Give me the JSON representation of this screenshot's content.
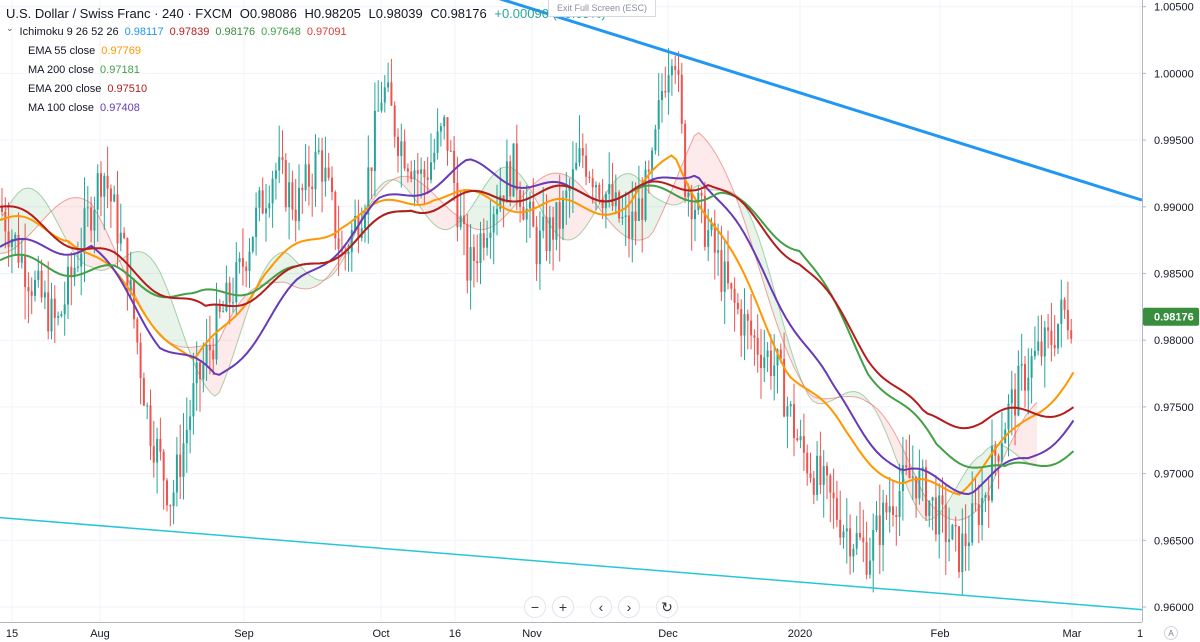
{
  "header": {
    "symbol": "U.S. Dollar / Swiss Franc · 240 · FXCM",
    "open": "O0.98086",
    "high": "H0.98205",
    "low": "L0.98039",
    "close": "C0.98176",
    "change": "+0.00090 (+0.09%)"
  },
  "exit_fullscreen": "Exit Full Screen (ESC)",
  "indicators": [
    {
      "name": "Ichimoku 9 26 52 26",
      "values": [
        "0.98117",
        "0.97839",
        "0.98176",
        "0.97648",
        "0.97091"
      ],
      "colors": [
        "#2196f3",
        "#b71c1c",
        "#388e3c",
        "#43a047",
        "#e53935"
      ]
    },
    {
      "name": "EMA 55 close",
      "values": [
        "0.97769"
      ],
      "colors": [
        "#ff9800"
      ]
    },
    {
      "name": "MA 200 close",
      "values": [
        "0.97181"
      ],
      "colors": [
        "#43a047"
      ]
    },
    {
      "name": "EMA 200 close",
      "values": [
        "0.97510"
      ],
      "colors": [
        "#b71c1c"
      ]
    },
    {
      "name": "MA 100 close",
      "values": [
        "0.97408"
      ],
      "colors": [
        "#673ab7"
      ]
    }
  ],
  "nav": {
    "zoom_out": "−",
    "zoom_in": "+",
    "scroll_left": "‹",
    "scroll_right": "›",
    "reset": "↻"
  },
  "auto_label": "A",
  "colors": {
    "up": "#26a69a",
    "down": "#ef5350",
    "price_tag": "#388e3c",
    "upper_trend": "#2196f3",
    "lower_trend": "#26c6da"
  },
  "chart_data": {
    "type": "candlestick",
    "symbol": "USD/CHF",
    "y_range": [
      0.958,
      1.0055
    ],
    "y_ticks": [
      "0.96000",
      "0.96500",
      "0.97000",
      "0.97500",
      "0.98000",
      "0.98500",
      "0.99000",
      "0.99500",
      "1.00000",
      "1.00500"
    ],
    "x_ticks": [
      "15",
      "Aug",
      "Sep",
      "Oct",
      "16",
      "Nov",
      "Dec",
      "2020",
      "Feb",
      "Mar",
      "1"
    ],
    "last_price": "0.98176",
    "close_path": [
      [
        0,
        0.99
      ],
      [
        0.03,
        0.984
      ],
      [
        0.05,
        0.981
      ],
      [
        0.07,
        0.987
      ],
      [
        0.09,
        0.993
      ],
      [
        0.11,
        0.986
      ],
      [
        0.13,
        0.974
      ],
      [
        0.15,
        0.968
      ],
      [
        0.17,
        0.976
      ],
      [
        0.19,
        0.981
      ],
      [
        0.21,
        0.985
      ],
      [
        0.22,
        0.988
      ],
      [
        0.24,
        0.993
      ],
      [
        0.26,
        0.99
      ],
      [
        0.28,
        0.994
      ],
      [
        0.3,
        0.986
      ],
      [
        0.32,
        0.991
      ],
      [
        0.335,
        0.999
      ],
      [
        0.35,
        0.995
      ],
      [
        0.37,
        0.992
      ],
      [
        0.39,
        0.996
      ],
      [
        0.41,
        0.985
      ],
      [
        0.43,
        0.99
      ],
      [
        0.45,
        0.993
      ],
      [
        0.47,
        0.987
      ],
      [
        0.49,
        0.989
      ],
      [
        0.51,
        0.994
      ],
      [
        0.53,
        0.991
      ],
      [
        0.55,
        0.988
      ],
      [
        0.57,
        0.992
      ],
      [
        0.58,
        0.999
      ],
      [
        0.59,
        1.003
      ],
      [
        0.6,
        0.992
      ],
      [
        0.62,
        0.988
      ],
      [
        0.64,
        0.983
      ],
      [
        0.66,
        0.98
      ],
      [
        0.68,
        0.978
      ],
      [
        0.7,
        0.972
      ],
      [
        0.72,
        0.969
      ],
      [
        0.74,
        0.966
      ],
      [
        0.76,
        0.964
      ],
      [
        0.78,
        0.968
      ],
      [
        0.8,
        0.97
      ],
      [
        0.82,
        0.967
      ],
      [
        0.84,
        0.964
      ],
      [
        0.86,
        0.968
      ],
      [
        0.88,
        0.974
      ],
      [
        0.9,
        0.978
      ],
      [
        0.92,
        0.98
      ],
      [
        0.93,
        0.982
      ],
      [
        0.94,
        0.9818
      ]
    ],
    "indicator_paths": {
      "ema55": [
        [
          0,
          0.989
        ],
        [
          0.06,
          0.988
        ],
        [
          0.12,
          0.983
        ],
        [
          0.17,
          0.978
        ],
        [
          0.23,
          0.985
        ],
        [
          0.3,
          0.989
        ],
        [
          0.38,
          0.991
        ],
        [
          0.47,
          0.99
        ],
        [
          0.55,
          0.99
        ],
        [
          0.59,
          0.994
        ],
        [
          0.63,
          0.988
        ],
        [
          0.69,
          0.978
        ],
        [
          0.74,
          0.973
        ],
        [
          0.79,
          0.969
        ],
        [
          0.84,
          0.969
        ],
        [
          0.89,
          0.973
        ],
        [
          0.94,
          0.9777
        ]
      ],
      "ma100": [
        [
          0,
          0.987
        ],
        [
          0.08,
          0.987
        ],
        [
          0.14,
          0.98
        ],
        [
          0.19,
          0.977
        ],
        [
          0.26,
          0.984
        ],
        [
          0.33,
          0.99
        ],
        [
          0.41,
          0.993
        ],
        [
          0.5,
          0.991
        ],
        [
          0.56,
          0.991
        ],
        [
          0.61,
          0.993
        ],
        [
          0.67,
          0.985
        ],
        [
          0.73,
          0.976
        ],
        [
          0.79,
          0.97
        ],
        [
          0.85,
          0.969
        ],
        [
          0.9,
          0.971
        ],
        [
          0.94,
          0.9741
        ]
      ],
      "ma200": [
        [
          0,
          0.986
        ],
        [
          0.1,
          0.985
        ],
        [
          0.17,
          0.983
        ],
        [
          0.26,
          0.985
        ],
        [
          0.36,
          0.99
        ],
        [
          0.45,
          0.991
        ],
        [
          0.55,
          0.991
        ],
        [
          0.63,
          0.991
        ],
        [
          0.7,
          0.987
        ],
        [
          0.76,
          0.978
        ],
        [
          0.82,
          0.972
        ],
        [
          0.88,
          0.97
        ],
        [
          0.94,
          0.9718
        ]
      ],
      "ema200": [
        [
          0,
          0.99
        ],
        [
          0.1,
          0.986
        ],
        [
          0.18,
          0.982
        ],
        [
          0.26,
          0.985
        ],
        [
          0.36,
          0.99
        ],
        [
          0.45,
          0.991
        ],
        [
          0.55,
          0.991
        ],
        [
          0.62,
          0.992
        ],
        [
          0.7,
          0.986
        ],
        [
          0.76,
          0.979
        ],
        [
          0.81,
          0.974
        ],
        [
          0.86,
          0.974
        ],
        [
          0.94,
          0.9751
        ]
      ]
    },
    "trendlines": {
      "upper": [
        [
          0.43,
          1.0058
        ],
        [
          1.0,
          0.9905
        ]
      ],
      "lower": [
        [
          0,
          0.9667
        ],
        [
          1.0,
          0.9598
        ]
      ]
    }
  }
}
